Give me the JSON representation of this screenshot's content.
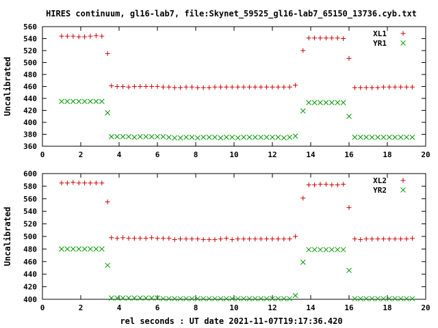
{
  "figure": {
    "title": "HIRES continuum, gl16-lab7, file:Skynet_59525_gl16-lab7_65150_13736.cyb.txt",
    "xlabel": "rel seconds : UT date 2021-11-07T19:17:36.420"
  },
  "chart_data": [
    {
      "type": "scatter",
      "title": "",
      "xlabel": "",
      "ylabel": "Uncalibrated",
      "xlim": [
        0,
        20
      ],
      "ylim": [
        360,
        560
      ],
      "xticks": [
        0,
        2,
        4,
        6,
        8,
        10,
        12,
        14,
        16,
        18,
        20
      ],
      "yticks": [
        360,
        380,
        400,
        420,
        440,
        460,
        480,
        500,
        520,
        540,
        560
      ],
      "grid": false,
      "legend": "top-right",
      "series": [
        {
          "name": "XL1",
          "marker": "plus",
          "color": "#cc0000",
          "x": [
            1.0,
            1.3,
            1.6,
            1.9,
            2.2,
            2.5,
            2.8,
            3.1,
            3.4,
            3.6,
            3.9,
            4.2,
            4.5,
            4.8,
            5.1,
            5.4,
            5.7,
            6.0,
            6.3,
            6.6,
            6.9,
            7.2,
            7.5,
            7.8,
            8.1,
            8.4,
            8.7,
            9.0,
            9.3,
            9.6,
            9.9,
            10.2,
            10.5,
            10.8,
            11.1,
            11.4,
            11.7,
            12.0,
            12.3,
            12.6,
            12.9,
            13.2,
            13.6,
            13.9,
            14.2,
            14.5,
            14.8,
            15.1,
            15.4,
            15.7,
            16.0,
            16.3,
            16.6,
            16.9,
            17.2,
            17.5,
            17.8,
            18.1,
            18.4,
            18.7,
            19.0,
            19.3
          ],
          "y": [
            544,
            544,
            544,
            543,
            543,
            544,
            545,
            544,
            515,
            461,
            460,
            460,
            459,
            460,
            460,
            460,
            460,
            460,
            459,
            459,
            458,
            458,
            459,
            459,
            458,
            458,
            458,
            459,
            459,
            459,
            459,
            459,
            459,
            459,
            459,
            459,
            459,
            459,
            459,
            459,
            459,
            462,
            520,
            541,
            541,
            541,
            541,
            541,
            541,
            540,
            507,
            458,
            458,
            458,
            458,
            458,
            459,
            459,
            459,
            459,
            459,
            459
          ]
        },
        {
          "name": "YR1",
          "marker": "cross",
          "color": "#009900",
          "x": [
            1.0,
            1.3,
            1.6,
            1.9,
            2.2,
            2.5,
            2.8,
            3.1,
            3.4,
            3.6,
            3.9,
            4.2,
            4.5,
            4.8,
            5.1,
            5.4,
            5.7,
            6.0,
            6.3,
            6.6,
            6.9,
            7.2,
            7.5,
            7.8,
            8.1,
            8.4,
            8.7,
            9.0,
            9.3,
            9.6,
            9.9,
            10.2,
            10.5,
            10.8,
            11.1,
            11.4,
            11.7,
            12.0,
            12.3,
            12.6,
            12.9,
            13.2,
            13.6,
            13.9,
            14.2,
            14.5,
            14.8,
            15.1,
            15.4,
            15.7,
            16.0,
            16.3,
            16.6,
            16.9,
            17.2,
            17.5,
            17.8,
            18.1,
            18.4,
            18.7,
            19.0,
            19.3
          ],
          "y": [
            435,
            435,
            435,
            435,
            435,
            435,
            435,
            435,
            416,
            376,
            376,
            376,
            376,
            375,
            376,
            376,
            376,
            376,
            376,
            375,
            374,
            374,
            375,
            375,
            374,
            375,
            375,
            375,
            374,
            375,
            375,
            374,
            375,
            375,
            375,
            375,
            375,
            375,
            375,
            374,
            375,
            377,
            419,
            433,
            433,
            433,
            433,
            433,
            433,
            433,
            410,
            375,
            375,
            375,
            375,
            375,
            375,
            375,
            375,
            375,
            375,
            375
          ]
        }
      ]
    },
    {
      "type": "scatter",
      "title": "",
      "xlabel": "",
      "ylabel": "Uncalibrated",
      "xlim": [
        0,
        20
      ],
      "ylim": [
        400,
        600
      ],
      "xticks": [
        0,
        2,
        4,
        6,
        8,
        10,
        12,
        14,
        16,
        18,
        20
      ],
      "yticks": [
        400,
        420,
        440,
        460,
        480,
        500,
        520,
        540,
        560,
        580,
        600
      ],
      "grid": false,
      "legend": "top-right",
      "series": [
        {
          "name": "XL2",
          "marker": "plus",
          "color": "#cc0000",
          "x": [
            1.0,
            1.3,
            1.6,
            1.9,
            2.2,
            2.5,
            2.8,
            3.1,
            3.4,
            3.6,
            3.9,
            4.2,
            4.5,
            4.8,
            5.1,
            5.4,
            5.7,
            6.0,
            6.3,
            6.6,
            6.9,
            7.2,
            7.5,
            7.8,
            8.1,
            8.4,
            8.7,
            9.0,
            9.3,
            9.6,
            9.9,
            10.2,
            10.5,
            10.8,
            11.1,
            11.4,
            11.7,
            12.0,
            12.3,
            12.6,
            12.9,
            13.2,
            13.6,
            13.9,
            14.2,
            14.5,
            14.8,
            15.1,
            15.4,
            15.7,
            16.0,
            16.3,
            16.6,
            16.9,
            17.2,
            17.5,
            17.8,
            18.1,
            18.4,
            18.7,
            19.0,
            19.3
          ],
          "y": [
            585,
            585,
            586,
            585,
            585,
            585,
            585,
            585,
            555,
            498,
            497,
            498,
            497,
            497,
            497,
            497,
            498,
            497,
            497,
            497,
            495,
            496,
            496,
            496,
            496,
            495,
            495,
            495,
            496,
            497,
            495,
            496,
            496,
            496,
            496,
            496,
            496,
            496,
            496,
            496,
            496,
            500,
            561,
            582,
            582,
            583,
            583,
            582,
            582,
            583,
            546,
            496,
            495,
            496,
            496,
            496,
            496,
            496,
            496,
            496,
            496,
            497
          ]
        },
        {
          "name": "YR2",
          "marker": "cross",
          "color": "#009900",
          "x": [
            1.0,
            1.3,
            1.6,
            1.9,
            2.2,
            2.5,
            2.8,
            3.1,
            3.4,
            3.6,
            3.9,
            4.2,
            4.5,
            4.8,
            5.1,
            5.4,
            5.7,
            6.0,
            6.3,
            6.6,
            6.9,
            7.2,
            7.5,
            7.8,
            8.1,
            8.4,
            8.7,
            9.0,
            9.3,
            9.6,
            9.9,
            10.2,
            10.5,
            10.8,
            11.1,
            11.4,
            11.7,
            12.0,
            12.3,
            12.6,
            12.9,
            13.2,
            13.6,
            13.9,
            14.2,
            14.5,
            14.8,
            15.1,
            15.4,
            15.7,
            16.0,
            16.3,
            16.6,
            16.9,
            17.2,
            17.5,
            17.8,
            18.1,
            18.4,
            18.7,
            19.0,
            19.3
          ],
          "y": [
            480,
            480,
            480,
            480,
            480,
            480,
            480,
            480,
            454,
            402,
            402,
            402,
            402,
            402,
            402,
            402,
            402,
            402,
            401,
            401,
            401,
            401,
            401,
            401,
            401,
            401,
            401,
            401,
            401,
            401,
            401,
            401,
            401,
            401,
            401,
            401,
            401,
            401,
            401,
            401,
            401,
            406,
            459,
            479,
            479,
            479,
            479,
            479,
            479,
            479,
            446,
            401,
            401,
            401,
            401,
            401,
            401,
            401,
            401,
            401,
            401,
            401
          ]
        }
      ]
    }
  ]
}
